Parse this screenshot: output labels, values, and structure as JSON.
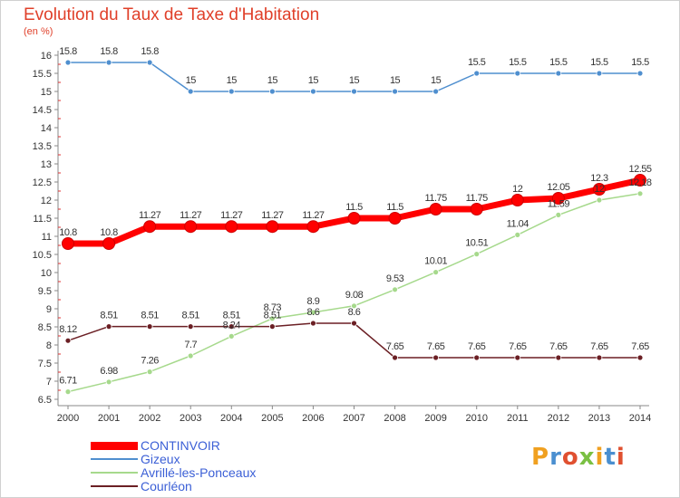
{
  "title": "Evolution du Taux de Taxe d'Habitation",
  "subtitle": "(en %)",
  "logo_text": "Proxiti",
  "colors": {
    "title": "#e0402a",
    "legend_text": "#3b5fd6",
    "axis": "#888888",
    "grid_tick": "#e03030"
  },
  "chart_data": {
    "type": "line",
    "x": [
      "2000",
      "2001",
      "2002",
      "2003",
      "2004",
      "2005",
      "2006",
      "2007",
      "2008",
      "2009",
      "2010",
      "2011",
      "2012",
      "2013",
      "2014"
    ],
    "ylim": [
      6.5,
      16
    ],
    "yticks": [
      "6.5",
      "7",
      "7.5",
      "8",
      "8.5",
      "9",
      "9.5",
      "10",
      "10.5",
      "11",
      "11.5",
      "12",
      "12.5",
      "13",
      "13.5",
      "14",
      "14.5",
      "15",
      "15.5",
      "16"
    ],
    "series": [
      {
        "name": "CONTINVOIR",
        "color": "#ff0000",
        "values": [
          10.8,
          10.8,
          11.27,
          11.27,
          11.27,
          11.27,
          11.27,
          11.5,
          11.5,
          11.75,
          11.75,
          12,
          12.05,
          12.3,
          12.55
        ],
        "labels": [
          "10.8",
          "10.8",
          "11.27",
          "11.27",
          "11.27",
          "11.27",
          "11.27",
          "11.5",
          "11.5",
          "11.75",
          "11.75",
          "12",
          "12.05",
          "12.3",
          "12.55"
        ]
      },
      {
        "name": "Gizeux",
        "color": "#4f8fcf",
        "values": [
          15.8,
          15.8,
          15.8,
          15,
          15,
          15,
          15,
          15,
          15,
          15,
          15.5,
          15.5,
          15.5,
          15.5,
          15.5
        ],
        "labels": [
          "15.8",
          "15.8",
          "15.8",
          "15",
          "15",
          "15",
          "15",
          "15",
          "15",
          "15",
          "15.5",
          "15.5",
          "15.5",
          "15.5",
          "15.5"
        ]
      },
      {
        "name": "Avrillé-les-Ponceaux",
        "color": "#a6d98c",
        "values": [
          6.71,
          6.98,
          7.26,
          7.7,
          8.24,
          8.73,
          8.9,
          9.08,
          9.53,
          10.01,
          10.51,
          11.04,
          11.59,
          12,
          12.18
        ],
        "labels": [
          "6.71",
          "6.98",
          "7.26",
          "7.7",
          "8.24",
          "8.73",
          "8.9",
          "9.08",
          "9.53",
          "10.01",
          "10.51",
          "11.04",
          "11.59",
          "12",
          "12.18"
        ]
      },
      {
        "name": "Courléon",
        "color": "#6b1f24",
        "values": [
          8.12,
          8.51,
          8.51,
          8.51,
          8.51,
          8.51,
          8.6,
          8.6,
          7.65,
          7.65,
          7.65,
          7.65,
          7.65,
          7.65,
          7.65
        ],
        "labels": [
          "8.12",
          "8.51",
          "8.51",
          "8.51",
          "8.51",
          "8.51",
          "8.6",
          "8.6",
          "7.65",
          "7.65",
          "7.65",
          "7.65",
          "7.65",
          "7.65",
          "7.65"
        ]
      }
    ]
  }
}
